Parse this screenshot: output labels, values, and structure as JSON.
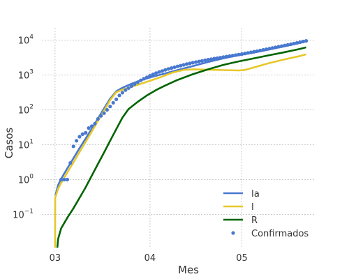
{
  "chart_data": {
    "type": "line",
    "xlabel": "Mes",
    "ylabel": "Casos",
    "x_ticks": [
      {
        "label": "03",
        "t": 0
      },
      {
        "label": "04",
        "t": 31
      },
      {
        "label": "05",
        "t": 61
      }
    ],
    "y_ticks": [
      {
        "exp": -1,
        "value": 0.1
      },
      {
        "exp": 0,
        "value": 1
      },
      {
        "exp": 1,
        "value": 10
      },
      {
        "exp": 2,
        "value": 100
      },
      {
        "exp": 3,
        "value": 1000
      },
      {
        "exp": 4,
        "value": 10000
      }
    ],
    "x_range": [
      -4.3,
      84.6
    ],
    "y_log_range": [
      -1.95,
      4.35
    ],
    "y_scale": "log",
    "grid": true,
    "legend_position": "bottom-right",
    "series": [
      {
        "name": "Ia",
        "type": "line",
        "color": "#4878cf",
        "points": [
          [
            0.1,
            0.35
          ],
          [
            1,
            0.7
          ],
          [
            2,
            1.05
          ],
          [
            4,
            2.1
          ],
          [
            6,
            4.1
          ],
          [
            8,
            8
          ],
          [
            10,
            15
          ],
          [
            12,
            29
          ],
          [
            14,
            56
          ],
          [
            16,
            110
          ],
          [
            18,
            210
          ],
          [
            20,
            340
          ],
          [
            22,
            430
          ],
          [
            25,
            560
          ],
          [
            28,
            700
          ],
          [
            31,
            850
          ],
          [
            35,
            1050
          ],
          [
            40,
            1380
          ],
          [
            45,
            1800
          ],
          [
            50,
            2350
          ],
          [
            55,
            3000
          ],
          [
            60,
            3700
          ],
          [
            65,
            4400
          ],
          [
            70,
            5400
          ],
          [
            75,
            6700
          ],
          [
            80,
            8300
          ],
          [
            82,
            9200
          ]
        ]
      },
      {
        "name": "I",
        "type": "line",
        "color": "#e6c82a",
        "points": [
          [
            0,
            0.008
          ],
          [
            0.05,
            0.3
          ],
          [
            1,
            0.55
          ],
          [
            2,
            0.8
          ],
          [
            4,
            1.6
          ],
          [
            6,
            3.1
          ],
          [
            8,
            6.2
          ],
          [
            10,
            12
          ],
          [
            12,
            24
          ],
          [
            14,
            48
          ],
          [
            16,
            95
          ],
          [
            18,
            190
          ],
          [
            20,
            320
          ],
          [
            22,
            380
          ],
          [
            25,
            460
          ],
          [
            28,
            560
          ],
          [
            31,
            680
          ],
          [
            35,
            900
          ],
          [
            38,
            1150
          ],
          [
            42,
            1400
          ],
          [
            45,
            1450
          ],
          [
            50,
            1420
          ],
          [
            55,
            1380
          ],
          [
            60,
            1350
          ],
          [
            62,
            1400
          ],
          [
            65,
            1650
          ],
          [
            70,
            2200
          ],
          [
            75,
            2800
          ],
          [
            80,
            3500
          ],
          [
            82,
            3900
          ]
        ]
      },
      {
        "name": "R",
        "type": "line",
        "color": "#006400",
        "points": [
          [
            0.6,
            0.008
          ],
          [
            1,
            0.02
          ],
          [
            2,
            0.04
          ],
          [
            4,
            0.08
          ],
          [
            6,
            0.15
          ],
          [
            8,
            0.3
          ],
          [
            10,
            0.6
          ],
          [
            12,
            1.3
          ],
          [
            14,
            2.8
          ],
          [
            16,
            6
          ],
          [
            18,
            13
          ],
          [
            20,
            28
          ],
          [
            22,
            60
          ],
          [
            24,
            105
          ],
          [
            27,
            170
          ],
          [
            30,
            260
          ],
          [
            33,
            370
          ],
          [
            36,
            500
          ],
          [
            40,
            720
          ],
          [
            45,
            1050
          ],
          [
            50,
            1450
          ],
          [
            55,
            1950
          ],
          [
            60,
            2450
          ],
          [
            65,
            3000
          ],
          [
            70,
            3700
          ],
          [
            75,
            4500
          ],
          [
            80,
            5600
          ],
          [
            82,
            6200
          ]
        ]
      },
      {
        "name": "Confirmados",
        "type": "scatter",
        "color": "#4878cf",
        "points": [
          [
            2,
            1
          ],
          [
            3,
            1
          ],
          [
            4,
            1
          ],
          [
            5,
            3
          ],
          [
            6,
            9
          ],
          [
            7,
            13
          ],
          [
            8,
            17
          ],
          [
            9,
            20
          ],
          [
            10,
            22
          ],
          [
            11,
            30
          ],
          [
            12,
            34
          ],
          [
            13,
            40
          ],
          [
            14,
            55
          ],
          [
            15,
            67
          ],
          [
            16,
            80
          ],
          [
            17,
            100
          ],
          [
            18,
            125
          ],
          [
            19,
            160
          ],
          [
            20,
            200
          ],
          [
            21,
            260
          ],
          [
            22,
            310
          ],
          [
            23,
            370
          ],
          [
            24,
            420
          ],
          [
            25,
            480
          ],
          [
            26,
            550
          ],
          [
            27,
            620
          ],
          [
            28,
            700
          ],
          [
            29,
            780
          ],
          [
            30,
            860
          ],
          [
            31,
            950
          ],
          [
            32,
            1040
          ],
          [
            33,
            1130
          ],
          [
            34,
            1220
          ],
          [
            35,
            1300
          ],
          [
            36,
            1400
          ],
          [
            37,
            1490
          ],
          [
            38,
            1580
          ],
          [
            39,
            1670
          ],
          [
            40,
            1760
          ],
          [
            41,
            1850
          ],
          [
            42,
            1950
          ],
          [
            43,
            2050
          ],
          [
            44,
            2150
          ],
          [
            45,
            2250
          ],
          [
            46,
            2340
          ],
          [
            47,
            2440
          ],
          [
            48,
            2540
          ],
          [
            49,
            2640
          ],
          [
            50,
            2740
          ],
          [
            51,
            2840
          ],
          [
            52,
            2950
          ],
          [
            53,
            3050
          ],
          [
            54,
            3150
          ],
          [
            55,
            3260
          ],
          [
            56,
            3370
          ],
          [
            57,
            3480
          ],
          [
            58,
            3600
          ],
          [
            59,
            3720
          ],
          [
            60,
            3850
          ],
          [
            61,
            3990
          ],
          [
            62,
            4140
          ],
          [
            63,
            4300
          ],
          [
            64,
            4470
          ],
          [
            65,
            4650
          ],
          [
            66,
            4840
          ],
          [
            67,
            5040
          ],
          [
            68,
            5250
          ],
          [
            69,
            5470
          ],
          [
            70,
            5700
          ],
          [
            71,
            5940
          ],
          [
            72,
            6190
          ],
          [
            73,
            6450
          ],
          [
            74,
            6720
          ],
          [
            75,
            7000
          ],
          [
            76,
            7300
          ],
          [
            77,
            7620
          ],
          [
            78,
            7960
          ],
          [
            79,
            8320
          ],
          [
            80,
            8700
          ],
          [
            81,
            9100
          ],
          [
            82,
            9500
          ]
        ]
      }
    ]
  }
}
